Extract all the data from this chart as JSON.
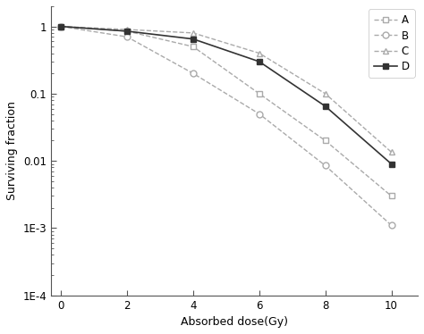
{
  "x": [
    0,
    2,
    4,
    6,
    8,
    10
  ],
  "series": [
    {
      "label": "A",
      "y": [
        1.0,
        0.85,
        0.5,
        0.1,
        0.02,
        0.003
      ],
      "marker": "s",
      "linestyle": "--",
      "color": "#aaaaaa",
      "markersize": 5,
      "markerfacecolor": "white",
      "markeredgecolor": "#aaaaaa",
      "linewidth": 1.0,
      "zorder": 3
    },
    {
      "label": "B",
      "y": [
        1.0,
        0.7,
        0.2,
        0.05,
        0.0085,
        0.0011
      ],
      "marker": "o",
      "linestyle": "--",
      "color": "#aaaaaa",
      "markersize": 5,
      "markerfacecolor": "white",
      "markeredgecolor": "#aaaaaa",
      "linewidth": 1.0,
      "zorder": 3
    },
    {
      "label": "C",
      "y": [
        1.0,
        0.9,
        0.8,
        0.4,
        0.1,
        0.0135
      ],
      "marker": "^",
      "linestyle": "--",
      "color": "#aaaaaa",
      "markersize": 5,
      "markerfacecolor": "white",
      "markeredgecolor": "#aaaaaa",
      "linewidth": 1.0,
      "zorder": 3
    },
    {
      "label": "D",
      "y": [
        1.0,
        0.85,
        0.65,
        0.3,
        0.065,
        0.009
      ],
      "marker": "s",
      "linestyle": "-",
      "color": "#333333",
      "markersize": 5,
      "markerfacecolor": "#333333",
      "markeredgecolor": "#333333",
      "linewidth": 1.2,
      "zorder": 4
    }
  ],
  "xlabel": "Absorbed dose(Gy)",
  "ylabel": "Surviving fraction",
  "xlim": [
    -0.3,
    10.8
  ],
  "ylim": [
    0.0001,
    2.0
  ],
  "xticks": [
    0,
    2,
    4,
    6,
    8,
    10
  ],
  "ytick_values": [
    0.0001,
    0.001,
    0.01,
    0.1,
    1.0
  ],
  "background_color": "#ffffff",
  "figsize": [
    4.74,
    3.74
  ],
  "dpi": 100
}
